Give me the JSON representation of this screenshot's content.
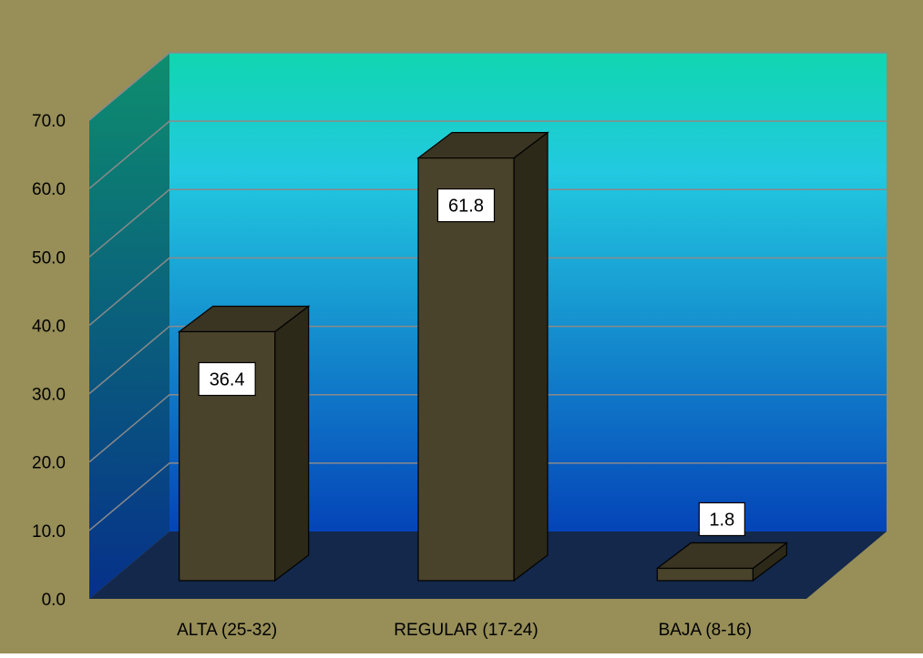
{
  "colors": {
    "frame_bg": "#978E58",
    "back_wall_top": "#10D6B0",
    "back_wall_mid": "#22C9E0",
    "back_wall_bottom": "#0444B8",
    "side_wall_top": "#0E8E6E",
    "side_wall_bottom": "#06308A",
    "floor": "#13284A",
    "bar_front": "#4A432C",
    "bar_side": "#2C2919",
    "bar_top": "#3A3522",
    "gridline": "#8A8A8A",
    "label_box": "#FFFFFF"
  },
  "chart_data": {
    "type": "bar",
    "categories": [
      "ALTA (25-32)",
      "REGULAR (17-24)",
      "BAJA (8-16)"
    ],
    "values": [
      36.4,
      61.8,
      1.8
    ],
    "data_labels": [
      "36.4",
      "61.8",
      "1.8"
    ],
    "title": "",
    "xlabel": "",
    "ylabel": "",
    "ylim": [
      0,
      70
    ],
    "yticks": [
      "0.0",
      "10.0",
      "20.0",
      "30.0",
      "40.0",
      "50.0",
      "60.0",
      "70.0"
    ],
    "grid": true,
    "legend": "none",
    "style": "3d-column"
  }
}
